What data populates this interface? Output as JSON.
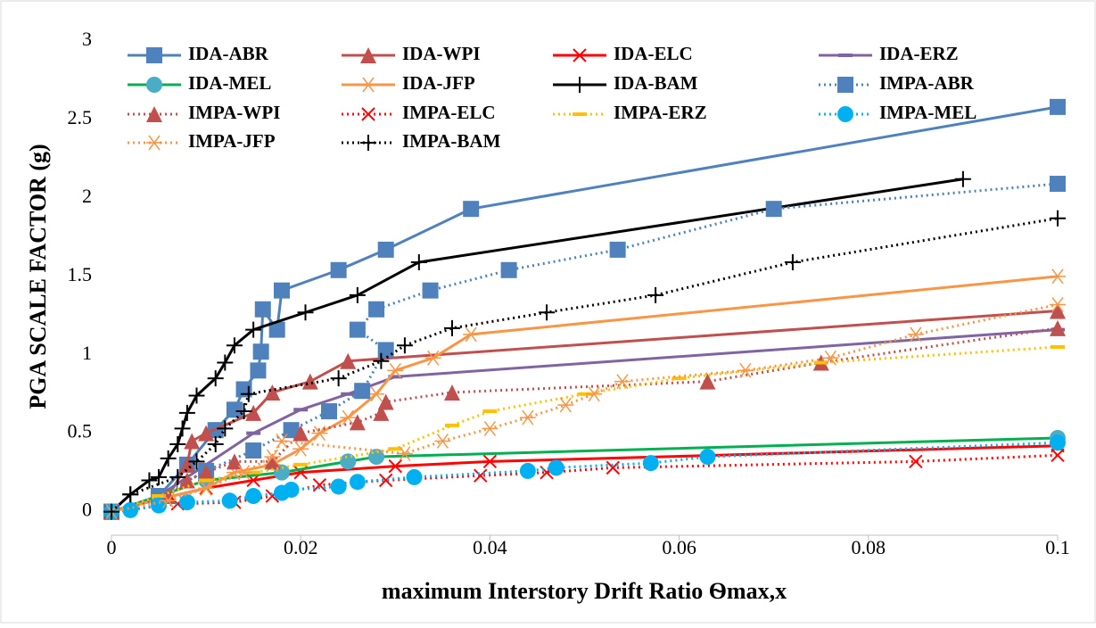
{
  "chart_data": {
    "type": "line",
    "x_label": "maximum Interstory Drift Ratio Ѳmax,x",
    "y_label": "PGA  SCALE FACTOR (g)",
    "xlim": [
      0,
      0.1
    ],
    "ylim": [
      -0.15,
      3
    ],
    "xticks": [
      0,
      0.02,
      0.04,
      0.06,
      0.08,
      0.1
    ],
    "yticks": [
      0,
      0.5,
      1,
      1.5,
      2,
      2.5,
      3
    ],
    "grid": false,
    "legend": "top-left",
    "series": [
      {
        "name": "IDA-ABR",
        "color": "#4f81bd",
        "style": "solid",
        "marker": "square",
        "x": [
          0,
          0.005,
          0.008,
          0.011,
          0.013,
          0.014,
          0.0155,
          0.0158,
          0.016,
          0.0175,
          0.018,
          0.024,
          0.029,
          0.038,
          0.1
        ],
        "values": [
          0,
          0.1,
          0.3,
          0.52,
          0.65,
          0.78,
          0.9,
          1.02,
          1.29,
          1.16,
          1.41,
          1.54,
          1.67,
          1.93,
          2.58
        ]
      },
      {
        "name": "IDA-WPI",
        "color": "#c0504d",
        "style": "solid",
        "marker": "triangle",
        "x": [
          0,
          0.006,
          0.008,
          0.0085,
          0.01,
          0.015,
          0.017,
          0.021,
          0.025,
          0.1
        ],
        "values": [
          0,
          0.1,
          0.3,
          0.45,
          0.5,
          0.63,
          0.76,
          0.83,
          0.96,
          1.28
        ]
      },
      {
        "name": "IDA-ELC",
        "color": "#ff0000",
        "style": "solid",
        "marker": "x",
        "x": [
          0,
          0.005,
          0.01,
          0.015,
          0.02,
          0.03,
          0.04,
          0.1
        ],
        "values": [
          0,
          0.08,
          0.15,
          0.2,
          0.25,
          0.29,
          0.32,
          0.42
        ]
      },
      {
        "name": "IDA-ERZ",
        "color": "#8064a2",
        "style": "solid",
        "marker": "dash",
        "x": [
          0,
          0.005,
          0.01,
          0.015,
          0.02,
          0.025,
          0.03,
          0.1
        ],
        "values": [
          0,
          0.1,
          0.3,
          0.5,
          0.65,
          0.75,
          0.86,
          1.16
        ]
      },
      {
        "name": "IDA-MEL",
        "color": "#00b050",
        "marker_color": "#4bacc6",
        "style": "solid",
        "marker": "circle",
        "x": [
          0,
          0.005,
          0.01,
          0.018,
          0.025,
          0.028,
          0.1
        ],
        "values": [
          0,
          0.1,
          0.2,
          0.25,
          0.32,
          0.35,
          0.47
        ]
      },
      {
        "name": "IDA-JFP",
        "color": "#f79646",
        "style": "solid",
        "marker": "asterisk",
        "x": [
          0,
          0.005,
          0.01,
          0.013,
          0.017,
          0.02,
          0.022,
          0.025,
          0.028,
          0.03,
          0.034,
          0.038,
          0.1
        ],
        "values": [
          0,
          0.08,
          0.15,
          0.25,
          0.3,
          0.4,
          0.5,
          0.6,
          0.75,
          0.9,
          0.98,
          1.13,
          1.5
        ]
      },
      {
        "name": "IDA-BAM",
        "color": "#000000",
        "style": "solid",
        "marker": "plus",
        "x": [
          0,
          0.002,
          0.004,
          0.005,
          0.006,
          0.007,
          0.0075,
          0.008,
          0.009,
          0.011,
          0.012,
          0.013,
          0.015,
          0.0205,
          0.026,
          0.0325,
          0.09
        ],
        "values": [
          0,
          0.11,
          0.2,
          0.22,
          0.34,
          0.43,
          0.53,
          0.63,
          0.74,
          0.85,
          0.95,
          1.06,
          1.16,
          1.27,
          1.38,
          1.59,
          2.12
        ]
      },
      {
        "name": "IMPA-ABR",
        "color": "#4f81bd",
        "style": "dotted",
        "marker": "square",
        "x": [
          0,
          0.005,
          0.01,
          0.015,
          0.019,
          0.023,
          0.0265,
          0.029,
          0.026,
          0.028,
          0.0337,
          0.042,
          0.0535,
          0.07,
          0.1
        ],
        "values": [
          0,
          0.1,
          0.26,
          0.39,
          0.52,
          0.64,
          0.77,
          1.03,
          1.16,
          1.29,
          1.41,
          1.54,
          1.67,
          1.93,
          2.09
        ]
      },
      {
        "name": "IMPA-WPI",
        "color": "#c0504d",
        "style": "dotted",
        "marker": "triangle",
        "x": [
          0,
          0.006,
          0.008,
          0.01,
          0.013,
          0.017,
          0.02,
          0.026,
          0.0285,
          0.029,
          0.036,
          0.063,
          0.075,
          0.1
        ],
        "values": [
          0,
          0.1,
          0.2,
          0.25,
          0.32,
          0.32,
          0.5,
          0.57,
          0.63,
          0.7,
          0.76,
          0.83,
          0.95,
          1.17
        ]
      },
      {
        "name": "IMPA-ELC",
        "color": "#ff0000",
        "style": "dotted",
        "marker": "x",
        "x": [
          0,
          0.007,
          0.013,
          0.017,
          0.022,
          0.029,
          0.039,
          0.046,
          0.053,
          0.085,
          0.1
        ],
        "values": [
          0,
          0.05,
          0.06,
          0.1,
          0.17,
          0.2,
          0.23,
          0.25,
          0.28,
          0.32,
          0.36
        ]
      },
      {
        "name": "IMPA-ERZ",
        "color": "#ffc000",
        "style": "dotted",
        "marker": "dash",
        "x": [
          0,
          0.005,
          0.01,
          0.015,
          0.02,
          0.03,
          0.036,
          0.04,
          0.05,
          0.06,
          0.075,
          0.1
        ],
        "values": [
          0,
          0.1,
          0.2,
          0.25,
          0.3,
          0.4,
          0.55,
          0.64,
          0.75,
          0.85,
          0.95,
          1.05
        ]
      },
      {
        "name": "IMPA-MEL",
        "color": "#00b0f0",
        "style": "dotted",
        "marker": "circle",
        "x": [
          0,
          0.002,
          0.005,
          0.008,
          0.0125,
          0.015,
          0.018,
          0.019,
          0.024,
          0.026,
          0.032,
          0.044,
          0.047,
          0.057,
          0.063,
          0.1
        ],
        "values": [
          0,
          0.01,
          0.04,
          0.06,
          0.07,
          0.1,
          0.12,
          0.14,
          0.16,
          0.19,
          0.22,
          0.26,
          0.28,
          0.31,
          0.35,
          0.44
        ]
      },
      {
        "name": "IMPA-JFP",
        "color": "#f79646",
        "style": "dotted",
        "marker": "asterisk",
        "x": [
          0,
          0.006,
          0.01,
          0.014,
          0.017,
          0.018,
          0.031,
          0.035,
          0.04,
          0.044,
          0.048,
          0.051,
          0.054,
          0.067,
          0.076,
          0.085,
          0.1
        ],
        "values": [
          0,
          0.07,
          0.15,
          0.25,
          0.35,
          0.45,
          0.37,
          0.45,
          0.53,
          0.6,
          0.68,
          0.75,
          0.83,
          0.9,
          0.98,
          1.13,
          1.32
        ]
      },
      {
        "name": "IMPA-BAM",
        "color": "#000000",
        "style": "dotted",
        "marker": "plus",
        "x": [
          0,
          0.002,
          0.007,
          0.009,
          0.011,
          0.012,
          0.014,
          0.0145,
          0.024,
          0.0285,
          0.031,
          0.036,
          0.046,
          0.0575,
          0.072,
          0.1
        ],
        "values": [
          0,
          0.11,
          0.22,
          0.32,
          0.43,
          0.53,
          0.64,
          0.75,
          0.85,
          0.96,
          1.06,
          1.17,
          1.27,
          1.38,
          1.59,
          1.87
        ]
      }
    ]
  }
}
